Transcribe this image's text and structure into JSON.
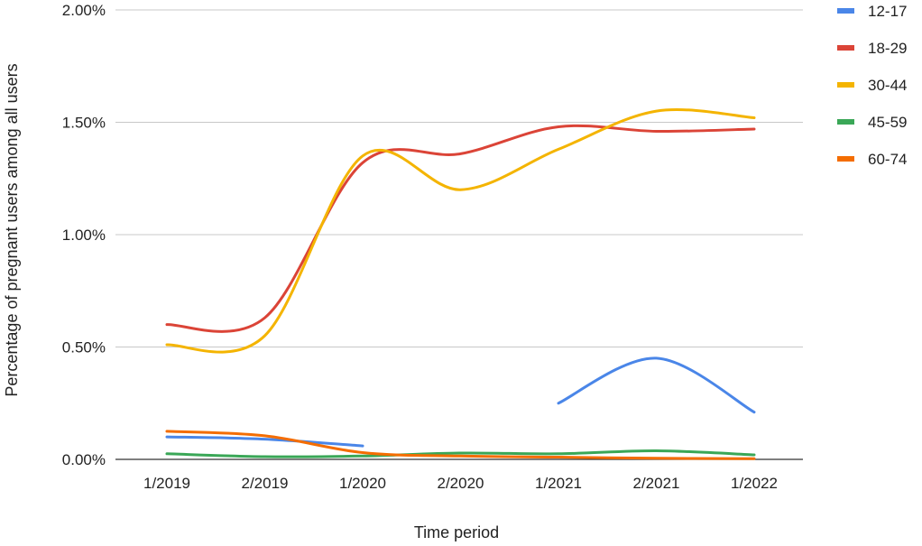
{
  "chart_data": {
    "type": "line",
    "title": "",
    "xlabel": "Time period",
    "ylabel": "Percentage of pregnant users among all users",
    "categories": [
      "1/2019",
      "2/2019",
      "1/2020",
      "2/2020",
      "1/2021",
      "2/2021",
      "1/2022"
    ],
    "y_ticks": [
      "0.00%",
      "0.50%",
      "1.00%",
      "1.50%",
      "2.00%"
    ],
    "ylim": [
      0,
      2.0
    ],
    "y_unit": "%",
    "grid": true,
    "legend_position": "right",
    "series": [
      {
        "name": "12-17",
        "color": "#4a86e8",
        "values": [
          0.1,
          0.09,
          0.06,
          null,
          0.25,
          0.45,
          0.21
        ]
      },
      {
        "name": "18-29",
        "color": "#db4437",
        "values": [
          0.6,
          0.63,
          1.32,
          1.36,
          1.48,
          1.46,
          1.47
        ]
      },
      {
        "name": "30-44",
        "color": "#f4b400",
        "values": [
          0.51,
          0.55,
          1.35,
          1.2,
          1.38,
          1.55,
          1.52
        ]
      },
      {
        "name": "45-59",
        "color": "#3aa757",
        "values": [
          0.025,
          0.012,
          0.015,
          0.028,
          0.025,
          0.038,
          0.02
        ]
      },
      {
        "name": "60-74",
        "color": "#f46d01",
        "values": [
          0.125,
          0.105,
          0.03,
          0.015,
          0.01,
          0.005,
          0.003
        ]
      }
    ]
  }
}
